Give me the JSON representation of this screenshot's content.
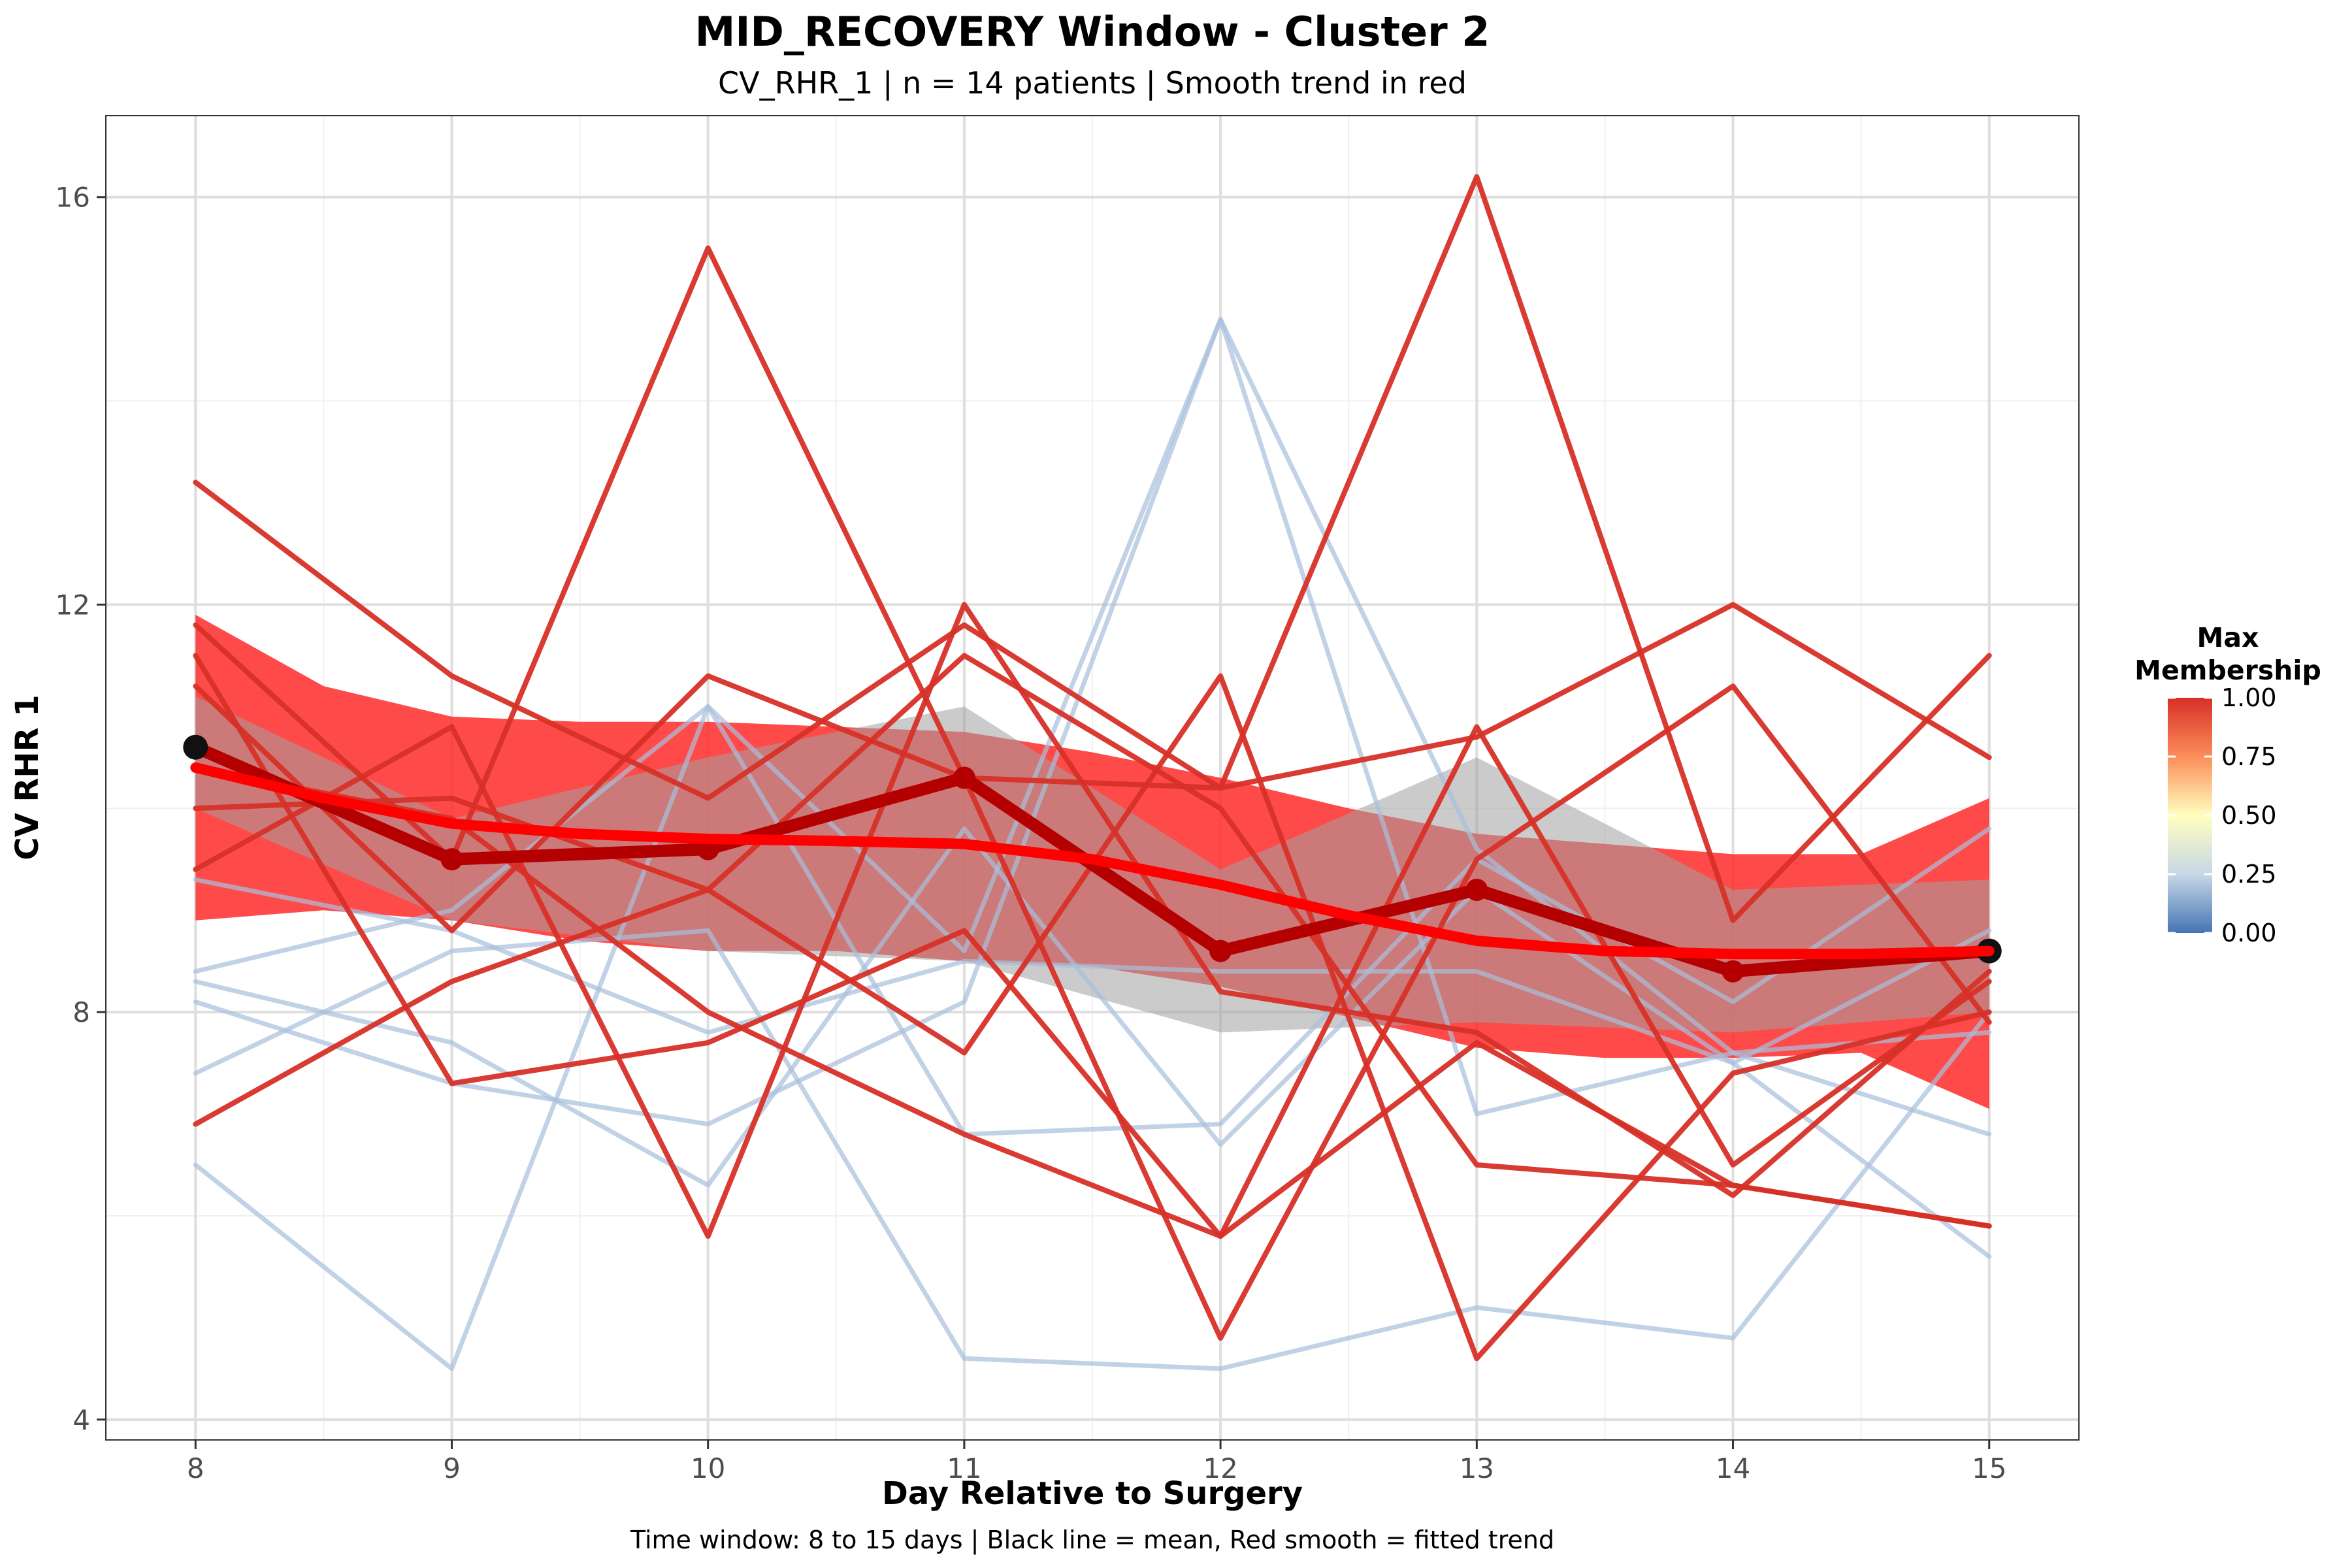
{
  "chart_data": {
    "type": "line",
    "title": "MID_RECOVERY Window - Cluster 2",
    "subtitle": "CV_RHR_1 | n = 14 patients | Smooth trend in red",
    "caption": "Time window: 8 to 15 days | Black line = mean, Red smooth = fitted trend",
    "xlabel": "Day Relative to Surgery",
    "ylabel": "CV RHR 1",
    "x": [
      8,
      9,
      10,
      11,
      12,
      13,
      14,
      15
    ],
    "xlim": [
      7.65,
      15.35
    ],
    "ylim": [
      3.8,
      16.8
    ],
    "x_ticks": [
      "8",
      "9",
      "10",
      "11",
      "12",
      "13",
      "14",
      "15"
    ],
    "y_ticks": [
      4,
      8,
      12,
      16
    ],
    "y_tick_labels": [
      "4",
      "8",
      "12",
      "16"
    ],
    "grid": true,
    "colors": {
      "high_membership": "#d73027",
      "low_membership": "#a8bfdc",
      "mean_line": "#b40000",
      "smooth_line": "#ff0000",
      "smooth_ribbon": "#ff2a2a",
      "mean_ribbon": "#a0a0a0",
      "mean_points": "#111111"
    },
    "series": [
      {
        "membership": 0.15,
        "values": [
          8.4,
          9.0,
          11.0,
          8.6,
          14.8,
          9.6,
          7.6,
          7.8
        ]
      },
      {
        "membership": 0.15,
        "values": [
          8.3,
          7.7,
          6.3,
          9.8,
          6.7,
          9.2,
          7.5,
          5.6
        ]
      },
      {
        "membership": 0.15,
        "values": [
          8.1,
          7.3,
          6.9,
          8.1,
          14.8,
          7.0,
          7.6,
          6.8
        ]
      },
      {
        "membership": 0.15,
        "values": [
          7.4,
          8.6,
          8.8,
          4.6,
          4.5,
          5.1,
          4.8,
          8.0
        ]
      },
      {
        "membership": 0.15,
        "values": [
          6.5,
          4.5,
          11.0,
          6.8,
          6.9,
          9.5,
          8.1,
          9.8
        ]
      },
      {
        "membership": 0.15,
        "values": [
          9.3,
          8.8,
          7.8,
          8.5,
          8.4,
          8.4,
          7.5,
          8.8
        ]
      },
      {
        "membership": 1.0,
        "values": [
          13.2,
          11.3,
          10.1,
          11.8,
          10.2,
          10.7,
          12.0,
          10.5
        ]
      },
      {
        "membership": 1.0,
        "values": [
          11.8,
          9.5,
          15.5,
          10.3,
          10.2,
          16.2,
          8.9,
          11.5
        ]
      },
      {
        "membership": 1.0,
        "values": [
          11.2,
          8.8,
          11.3,
          10.3,
          4.8,
          9.5,
          11.2,
          7.9
        ]
      },
      {
        "membership": 1.0,
        "values": [
          11.5,
          7.3,
          7.7,
          8.8,
          5.8,
          10.8,
          6.5,
          8.3
        ]
      },
      {
        "membership": 1.0,
        "values": [
          9.4,
          10.8,
          5.8,
          12.0,
          8.2,
          7.8,
          6.2,
          8.4
        ]
      },
      {
        "membership": 1.0,
        "values": [
          10.0,
          10.1,
          9.2,
          7.6,
          11.3,
          4.6,
          7.4,
          8.0
        ]
      },
      {
        "membership": 1.0,
        "values": [
          6.9,
          8.3,
          9.2,
          11.5,
          10.0,
          6.5,
          6.3,
          5.9
        ]
      },
      {
        "membership": 1.0,
        "values": [
          10.4,
          9.9,
          8.0,
          6.8,
          5.8,
          7.7,
          6.3,
          5.9
        ]
      }
    ],
    "mean": {
      "values": [
        10.6,
        9.5,
        9.6,
        10.3,
        8.6,
        9.2,
        8.4,
        8.6
      ]
    },
    "mean_ribbon": {
      "upper": [
        11.1,
        9.9,
        10.5,
        11.0,
        9.4,
        10.5,
        9.2,
        9.3
      ],
      "lower": [
        10.0,
        8.9,
        8.6,
        8.5,
        7.8,
        7.9,
        7.8,
        8.0
      ]
    },
    "smooth": {
      "x": [
        8,
        8.5,
        9,
        9.5,
        10,
        10.5,
        11,
        11.5,
        12,
        12.5,
        13,
        13.5,
        14,
        14.5,
        15
      ],
      "values": [
        10.4,
        10.1,
        9.85,
        9.75,
        9.7,
        9.68,
        9.65,
        9.5,
        9.25,
        8.95,
        8.7,
        8.6,
        8.57,
        8.57,
        8.6
      ],
      "upper": [
        11.9,
        11.2,
        10.9,
        10.85,
        10.85,
        10.8,
        10.75,
        10.55,
        10.3,
        10.0,
        9.75,
        9.65,
        9.55,
        9.55,
        10.1
      ],
      "lower": [
        8.9,
        9.0,
        8.9,
        8.7,
        8.6,
        8.6,
        8.5,
        8.45,
        8.25,
        7.95,
        7.65,
        7.55,
        7.55,
        7.6,
        7.05
      ]
    },
    "legend": {
      "title_line1": "Max",
      "title_line2": "Membership",
      "placement": "right",
      "ticks": [
        "1.00",
        "0.75",
        "0.50",
        "0.25",
        "0.00"
      ],
      "tick_values": [
        1.0,
        0.75,
        0.5,
        0.25,
        0.0
      ],
      "gradient_colors": [
        "#d73027",
        "#fc8d59",
        "#fee090",
        "#ffffbf",
        "#e0f3f8",
        "#91bfdb",
        "#4575b4"
      ]
    }
  }
}
